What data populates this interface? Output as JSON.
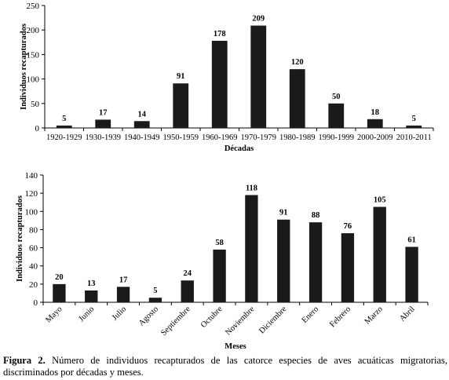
{
  "chart_data": [
    {
      "type": "bar",
      "categories": [
        "1920-1929",
        "1930-1939",
        "1940-1949",
        "1950-1959",
        "1960-1969",
        "1970-1979",
        "1980-1989",
        "1990-1999",
        "2000-2009",
        "2010-2011"
      ],
      "values": [
        5,
        17,
        14,
        91,
        178,
        209,
        120,
        50,
        18,
        5
      ],
      "xlabel": "Décadas",
      "ylabel": "Individuos  recapturados",
      "ylim": [
        0,
        250
      ],
      "yticks": [
        0,
        50,
        100,
        150,
        200,
        250
      ],
      "grid": false,
      "bar_color": "#1a1a1a"
    },
    {
      "type": "bar",
      "categories": [
        "Mayo",
        "Junio",
        "Julio",
        "Agosto",
        "Septiembre",
        "Octubre",
        "Noviembre",
        "Diciembre",
        "Enero",
        "Febrero",
        "Marzo",
        "Abril"
      ],
      "values": [
        20,
        13,
        17,
        5,
        24,
        58,
        118,
        91,
        88,
        76,
        105,
        61
      ],
      "xlabel": "Meses",
      "ylabel": "Individuos recapturados",
      "ylim": [
        0,
        140
      ],
      "yticks": [
        0,
        20,
        40,
        60,
        80,
        100,
        120,
        140
      ],
      "grid": false,
      "bar_color": "#1a1a1a"
    }
  ],
  "caption": {
    "label": "Figura 2.",
    "text": " Número de individuos recapturados de las catorce especies de aves acuáticas migratorias, discriminados por décadas y meses."
  }
}
